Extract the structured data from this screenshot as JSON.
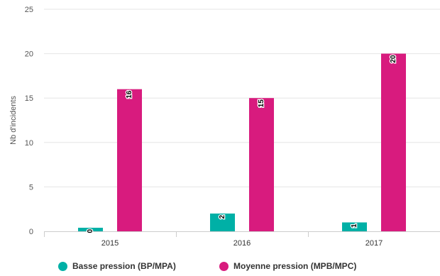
{
  "chart_data": {
    "type": "bar",
    "title": "",
    "xlabel": "",
    "ylabel": "Nb d'incidents",
    "categories": [
      "2015",
      "2016",
      "2017"
    ],
    "ylim": [
      0,
      25
    ],
    "yticks": [
      0,
      5,
      10,
      15,
      20,
      25
    ],
    "grid": true,
    "legend_position": "bottom",
    "series": [
      {
        "name": "Basse pression (BP/MPA)",
        "color": "#00b0a6",
        "values": [
          0.4,
          2,
          1
        ],
        "labels": [
          "0",
          "2",
          "1"
        ]
      },
      {
        "name": "Moyenne pression (MPB/MPC)",
        "color": "#d81b7e",
        "values": [
          16,
          15,
          20
        ],
        "labels": [
          "16",
          "15",
          "20"
        ]
      }
    ]
  }
}
